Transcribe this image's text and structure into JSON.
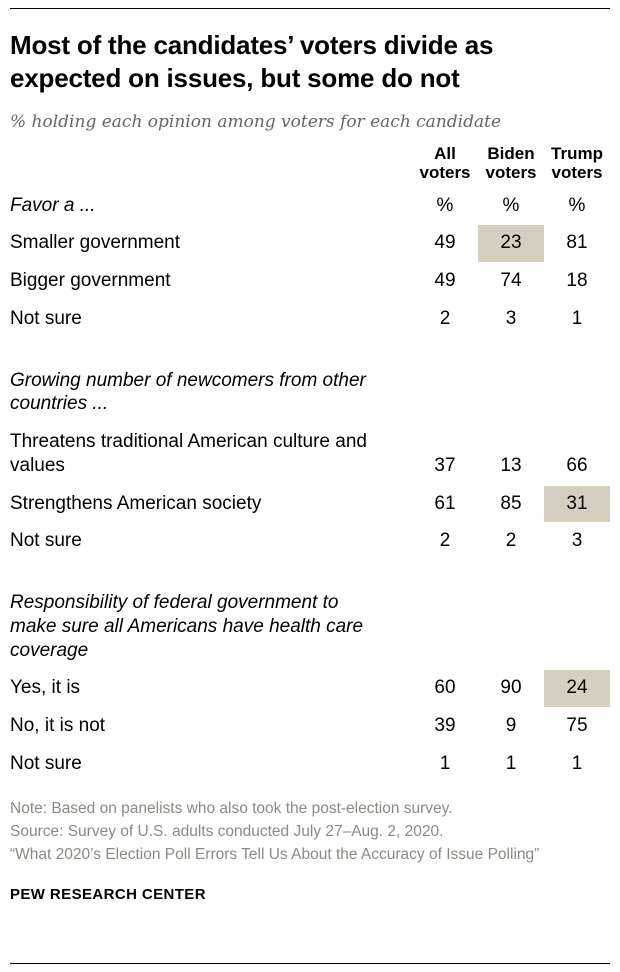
{
  "header": {
    "title": "Most of the candidates’ voters divide as expected on issues, but some do not",
    "subtitle": "% holding each opinion among voters for each candidate"
  },
  "chart_data": {
    "type": "table",
    "unit": "%",
    "columns": [
      "All voters",
      "Biden voters",
      "Trump voters"
    ],
    "sections": [
      {
        "label": "Favor a ...",
        "rows": [
          {
            "label": "Smaller government",
            "values": [
              49,
              23,
              81
            ],
            "highlight": [
              false,
              true,
              false
            ]
          },
          {
            "label": "Bigger government",
            "values": [
              49,
              74,
              18
            ],
            "highlight": [
              false,
              false,
              false
            ]
          },
          {
            "label": "Not sure",
            "values": [
              2,
              3,
              1
            ],
            "highlight": [
              false,
              false,
              false
            ]
          }
        ]
      },
      {
        "label": "Growing number of newcomers from other countries ...",
        "rows": [
          {
            "label": "Threatens traditional American culture and values",
            "values": [
              37,
              13,
              66
            ],
            "highlight": [
              false,
              false,
              false
            ]
          },
          {
            "label": "Strengthens American society",
            "values": [
              61,
              85,
              31
            ],
            "highlight": [
              false,
              false,
              true
            ]
          },
          {
            "label": "Not sure",
            "values": [
              2,
              2,
              3
            ],
            "highlight": [
              false,
              false,
              false
            ]
          }
        ]
      },
      {
        "label": "Responsibility of federal government to make sure all Americans have health care coverage",
        "rows": [
          {
            "label": "Yes, it is",
            "values": [
              60,
              90,
              24
            ],
            "highlight": [
              false,
              false,
              true
            ]
          },
          {
            "label": "No, it is not",
            "values": [
              39,
              9,
              75
            ],
            "highlight": [
              false,
              false,
              false
            ]
          },
          {
            "label": "Not sure",
            "values": [
              1,
              1,
              1
            ],
            "highlight": [
              false,
              false,
              false
            ]
          }
        ]
      }
    ]
  },
  "footer": {
    "notes": [
      "Note: Based on panelists who also took the post-election survey.",
      "Source: Survey of U.S. adults conducted July 27–Aug. 2, 2020.",
      "“What 2020’s Election Poll Errors Tell Us About the Accuracy of Issue Polling”"
    ],
    "brand": "PEW RESEARCH CENTER"
  }
}
